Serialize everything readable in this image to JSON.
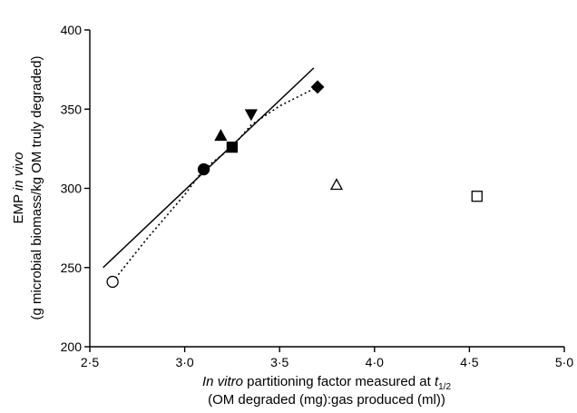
{
  "chart_data": {
    "type": "scatter",
    "xlabel_line1_italic": "In vitro",
    "xlabel_line1_rest": " partitioning factor measured at ",
    "xlabel_line1_var": "t",
    "xlabel_line1_sub": "1/2",
    "xlabel_line2": "(OM degraded (mg):gas produced (ml))",
    "ylabel_line1_prefix": "EMP ",
    "ylabel_line1_italic": "in vivo",
    "ylabel_line2": "(g microbial biomass/kg OM truly degraded)",
    "xlim": [
      2.5,
      5.0
    ],
    "ylim": [
      200,
      400
    ],
    "x_ticks": [
      2.5,
      3.0,
      3.5,
      4.0,
      4.5,
      5.0
    ],
    "x_tick_labels": [
      "2·5",
      "3·0",
      "3·5",
      "4·0",
      "4·5",
      "5·0"
    ],
    "y_ticks": [
      200,
      250,
      300,
      350,
      400
    ],
    "y_tick_labels": [
      "200",
      "250",
      "300",
      "350",
      "400"
    ],
    "points": [
      {
        "marker": "circle-open",
        "x": 2.62,
        "y": 241
      },
      {
        "marker": "circle-filled",
        "x": 3.1,
        "y": 312
      },
      {
        "marker": "square-filled",
        "x": 3.25,
        "y": 326
      },
      {
        "marker": "triangle-up-filled",
        "x": 3.19,
        "y": 333
      },
      {
        "marker": "triangle-down-filled",
        "x": 3.35,
        "y": 347
      },
      {
        "marker": "diamond-filled",
        "x": 3.7,
        "y": 364
      },
      {
        "marker": "triangle-up-open",
        "x": 3.8,
        "y": 302
      },
      {
        "marker": "square-open",
        "x": 4.54,
        "y": 295
      }
    ],
    "regression_line": [
      [
        2.57,
        250
      ],
      [
        3.68,
        376
      ]
    ],
    "dotted_curve": [
      [
        2.62,
        241
      ],
      [
        2.8,
        268
      ],
      [
        3.0,
        296
      ],
      [
        3.1,
        312
      ],
      [
        3.25,
        326
      ],
      [
        3.35,
        340
      ],
      [
        3.5,
        352
      ],
      [
        3.7,
        364
      ]
    ]
  }
}
